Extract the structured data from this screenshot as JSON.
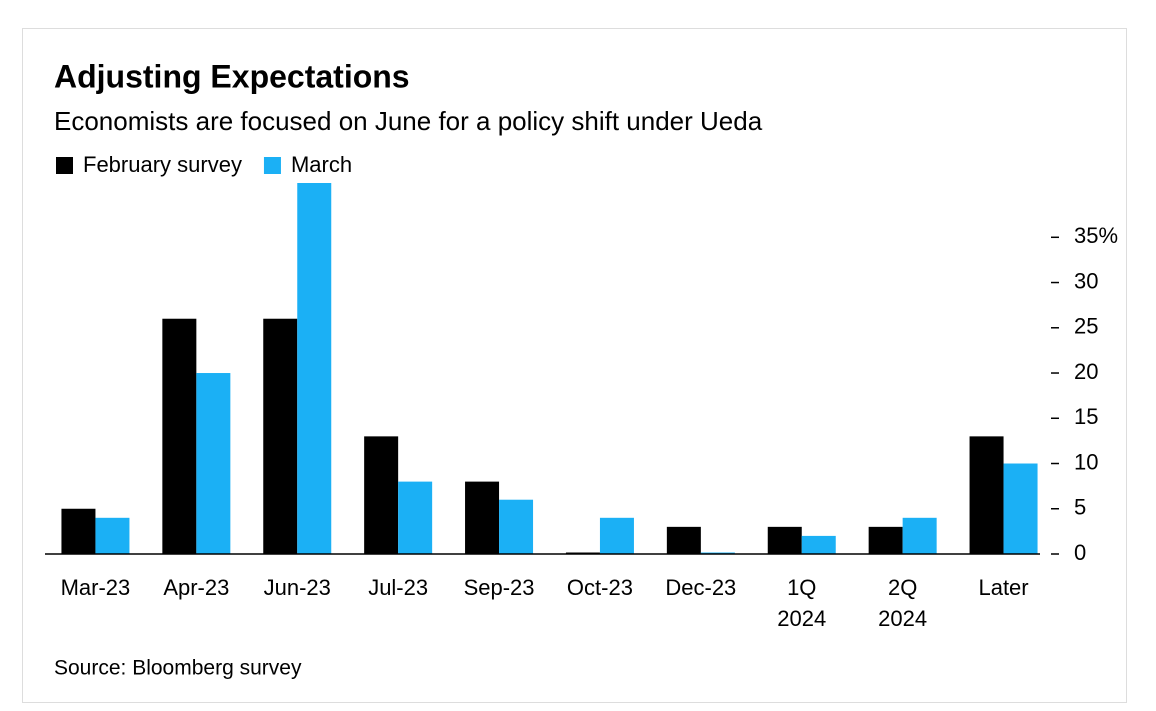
{
  "chart_data": {
    "type": "bar",
    "title": "Adjusting Expectations",
    "subtitle": "Economists are focused on June for a policy shift under Ueda",
    "source": "Source: Bloomberg survey",
    "categories": [
      "Mar-23",
      "Apr-23",
      "Jun-23",
      "Jul-23",
      "Sep-23",
      "Oct-23",
      "Dec-23",
      "1Q 2024",
      "2Q 2024",
      "Later"
    ],
    "series": [
      {
        "name": "February survey",
        "color": "#000000",
        "values": [
          5,
          26,
          26,
          13,
          8,
          0,
          3,
          3,
          3,
          13
        ]
      },
      {
        "name": "March",
        "color": "#1bb0f5",
        "values": [
          4,
          20,
          41,
          8,
          6,
          4,
          0,
          2,
          4,
          10
        ]
      }
    ],
    "ylim": [
      0,
      41
    ],
    "yticks": [
      0,
      5,
      10,
      15,
      20,
      25,
      30,
      {
        "value": 35,
        "label": "35%"
      }
    ],
    "legend": "top-left"
  }
}
